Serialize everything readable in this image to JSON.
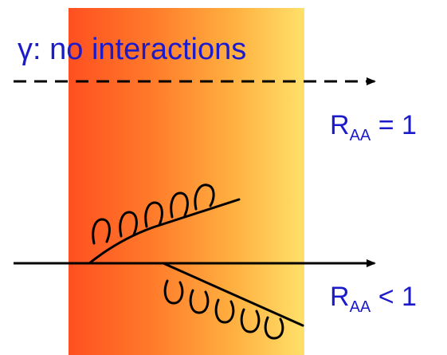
{
  "title": {
    "symbol": "γ:",
    "text": " no interactions"
  },
  "photon_label": {
    "R": "R",
    "sub": "AA",
    "rel": " = 1"
  },
  "jet_label": {
    "R": "R",
    "sub": "AA",
    "rel": " < 1"
  },
  "colors": {
    "medium_left": "#ff5020",
    "medium_right": "#ffe06a",
    "text": "#1b1bcc",
    "lines": "#000000"
  }
}
